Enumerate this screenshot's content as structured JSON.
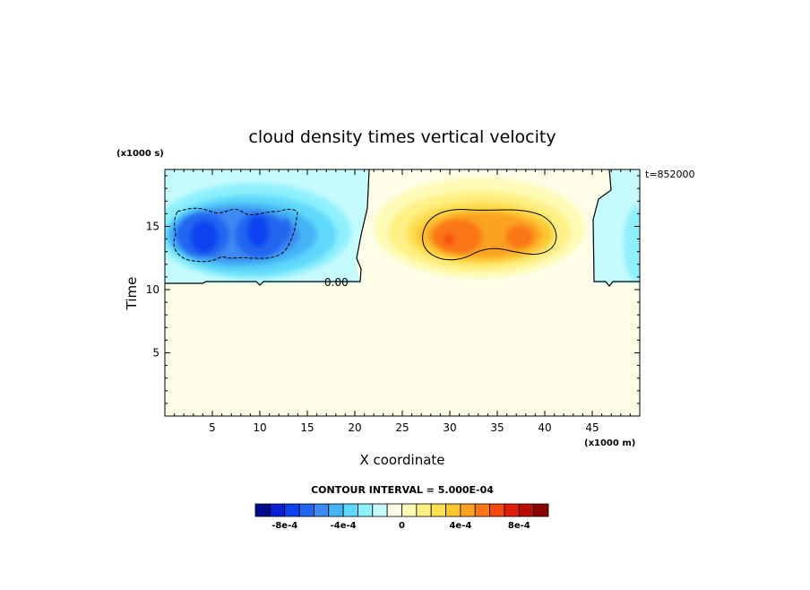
{
  "chart_data": {
    "type": "heatmap",
    "title": "cloud density times vertical velocity",
    "xlabel": "X coordinate",
    "ylabel": "Time",
    "x_units": "(x1000 m)",
    "y_units": "(x1000 s)",
    "timestamp": "t=852000",
    "xlim": [
      0,
      50
    ],
    "ylim": [
      0,
      19.5
    ],
    "x_ticks": [
      5,
      10,
      15,
      20,
      25,
      30,
      35,
      40,
      45
    ],
    "y_ticks": [
      5,
      10,
      15
    ],
    "contour_label": "0.00",
    "contour_interval_text": "CONTOUR INTERVAL = 5.000E-04",
    "colorbar": {
      "colors": [
        "#000b8c",
        "#0a1fd4",
        "#1043f0",
        "#2266f0",
        "#3d8af2",
        "#44b4f6",
        "#5fd9fb",
        "#8ff0fd",
        "#c6fbfe",
        "#fdfde8",
        "#fefbb6",
        "#fef084",
        "#fde053",
        "#fdc532",
        "#fca121",
        "#fb7615",
        "#f5480f",
        "#e01e0a",
        "#b80b05",
        "#8c0000"
      ],
      "tick_labels": [
        "-8e-4",
        "-4e-4",
        "0",
        "4e-4",
        "8e-4"
      ],
      "tick_values": [
        -0.0008,
        -0.0004,
        0,
        0.0004,
        0.0008
      ],
      "range": [
        -0.001,
        0.001
      ]
    },
    "features": [
      {
        "name": "negative region",
        "x_range": [
          0,
          21
        ],
        "y_range": [
          10.8,
          19.5
        ],
        "min_value": -0.0008
      },
      {
        "name": "positive region",
        "x_range": [
          21,
          45
        ],
        "y_range": [
          10.8,
          19.5
        ],
        "max_value": 0.0009
      }
    ]
  }
}
